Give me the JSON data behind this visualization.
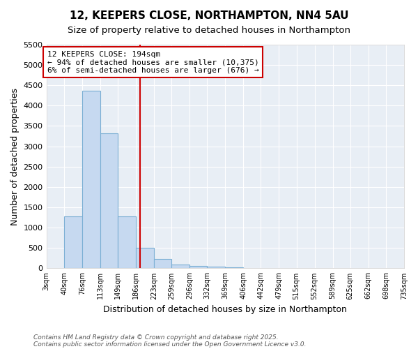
{
  "title1": "12, KEEPERS CLOSE, NORTHAMPTON, NN4 5AU",
  "title2": "Size of property relative to detached houses in Northampton",
  "xlabel": "Distribution of detached houses by size in Northampton",
  "ylabel": "Number of detached properties",
  "bin_edges": [
    3,
    40,
    76,
    113,
    149,
    186,
    223,
    259,
    296,
    332,
    369,
    406,
    442,
    479,
    515,
    552,
    589,
    625,
    662,
    698,
    735
  ],
  "bar_heights": [
    0,
    1270,
    4370,
    3320,
    1280,
    510,
    220,
    90,
    50,
    40,
    30,
    0,
    0,
    0,
    0,
    0,
    0,
    0,
    0,
    0
  ],
  "bar_color": "#c6d9f0",
  "bar_edge_color": "#7bafd4",
  "property_size": 194,
  "vline_color": "#cc0000",
  "ylim": [
    0,
    5500
  ],
  "yticks": [
    0,
    500,
    1000,
    1500,
    2000,
    2500,
    3000,
    3500,
    4000,
    4500,
    5000,
    5500
  ],
  "annotation_title": "12 KEEPERS CLOSE: 194sqm",
  "annotation_line1": "← 94% of detached houses are smaller (10,375)",
  "annotation_line2": "6% of semi-detached houses are larger (676) →",
  "annotation_box_color": "#cc0000",
  "annotation_bg_color": "#ffffff",
  "footer1": "Contains HM Land Registry data © Crown copyright and database right 2025.",
  "footer2": "Contains public sector information licensed under the Open Government Licence v3.0.",
  "bg_color": "#ffffff",
  "plot_bg_color": "#e8eef5",
  "grid_color": "#ffffff",
  "title_fontsize": 11,
  "subtitle_fontsize": 9.5
}
